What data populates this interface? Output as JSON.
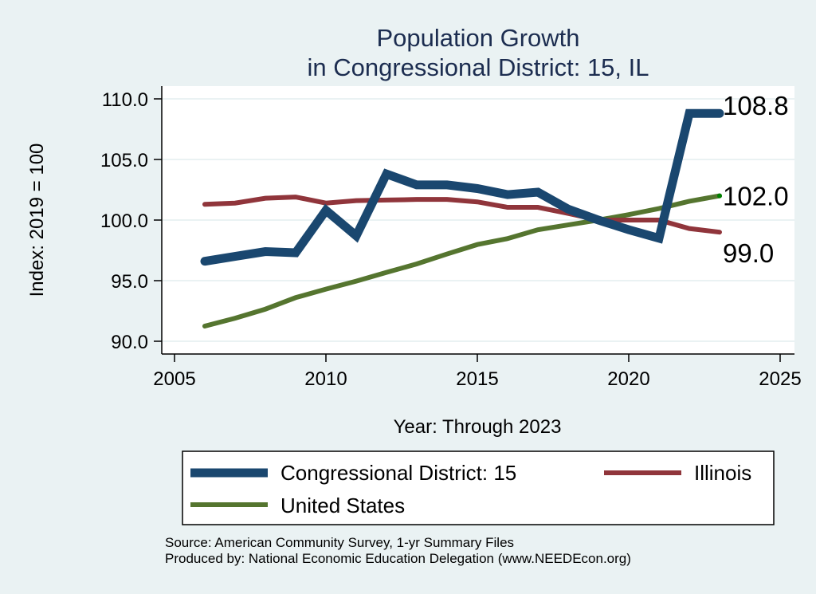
{
  "chart_data": {
    "type": "line",
    "title": [
      "Population Growth",
      "in Congressional District: 15, IL"
    ],
    "xlabel": "Year: Through 2023",
    "ylabel": "Index: 2019 = 100",
    "xlim": [
      2005,
      2025
    ],
    "ylim": [
      90,
      110
    ],
    "xticks": [
      2005,
      2010,
      2015,
      2020,
      2025
    ],
    "yticks": [
      90,
      95,
      100,
      105,
      110
    ],
    "ytick_labels": [
      "90.0",
      "95.0",
      "100.0",
      "105.0",
      "110.0"
    ],
    "xtick_labels": [
      "2005",
      "2010",
      "2015",
      "2020",
      "2025"
    ],
    "grid": true,
    "x": [
      2006,
      2007,
      2008,
      2009,
      2010,
      2011,
      2012,
      2013,
      2014,
      2015,
      2016,
      2017,
      2018,
      2019,
      2020,
      2021,
      2022,
      2023
    ],
    "series": [
      {
        "name": "Congressional District: 15",
        "color": "#1a476f",
        "values": [
          96.6,
          97.0,
          97.4,
          97.3,
          100.8,
          98.7,
          103.8,
          102.9,
          102.9,
          102.6,
          102.1,
          102.3,
          100.9,
          100.0,
          99.2,
          98.5,
          108.8,
          108.8
        ],
        "end_label": "108.8"
      },
      {
        "name": "Illinois",
        "color": "#90353b",
        "values": [
          101.3,
          101.4,
          101.8,
          101.9,
          101.4,
          101.6,
          101.65,
          101.7,
          101.7,
          101.5,
          101.05,
          101.05,
          100.55,
          100.0,
          100.0,
          100.0,
          99.3,
          99.0
        ],
        "end_label": "99.0"
      },
      {
        "name": "United States",
        "color": "#55752f",
        "values": [
          91.25,
          91.9,
          92.65,
          93.6,
          94.3,
          94.96,
          95.68,
          96.38,
          97.2,
          97.98,
          98.47,
          99.2,
          99.6,
          100.0,
          100.45,
          100.95,
          101.55,
          102.0
        ],
        "end_label": "102.0"
      }
    ],
    "legend": {
      "position": "bottom",
      "entries": [
        "Congressional District: 15",
        "Illinois",
        "United States"
      ]
    },
    "notes": [
      "Source: American Community Survey, 1-yr Summary Files",
      "Produced by: National Economic Education Delegation (www.NEEDEcon.org)"
    ]
  }
}
